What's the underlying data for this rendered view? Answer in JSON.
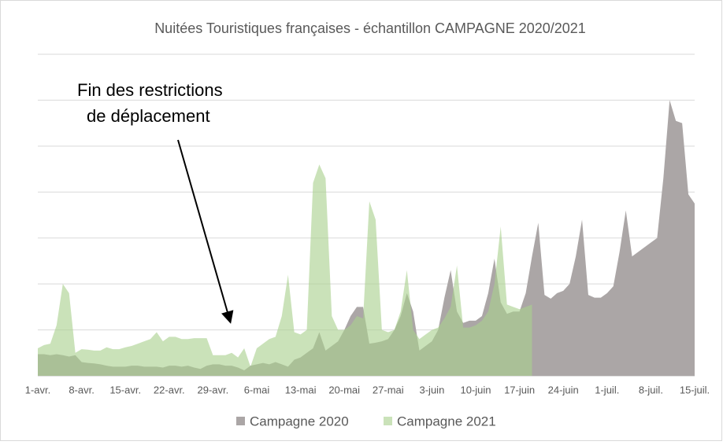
{
  "chart_data": {
    "type": "area",
    "title": "Nuitées Touristiques françaises - échantillon CAMPAGNE 2020/2021",
    "annotation": [
      "Fin des restrictions",
      "de déplacement"
    ],
    "categories": [
      "1-avr.",
      null,
      null,
      null,
      null,
      null,
      null,
      "8-avr.",
      null,
      null,
      null,
      null,
      null,
      null,
      "15-avr.",
      null,
      null,
      null,
      null,
      null,
      null,
      "22-avr.",
      null,
      null,
      null,
      null,
      null,
      null,
      "29-avr.",
      null,
      null,
      null,
      null,
      null,
      null,
      "6-mai",
      null,
      null,
      null,
      null,
      null,
      null,
      "13-mai",
      null,
      null,
      null,
      null,
      null,
      null,
      "20-mai",
      null,
      null,
      null,
      null,
      null,
      null,
      "27-mai",
      null,
      null,
      null,
      null,
      null,
      null,
      "3-juin",
      null,
      null,
      null,
      null,
      null,
      null,
      "10-juin",
      null,
      null,
      null,
      null,
      null,
      null,
      "17-juin",
      null,
      null,
      null,
      null,
      null,
      null,
      "24-juin",
      null,
      null,
      null,
      null,
      null,
      null,
      "1-juil.",
      null,
      null,
      null,
      null,
      null,
      null,
      "8-juil.",
      null,
      null,
      null,
      null,
      null,
      null,
      "15-juil."
    ],
    "series": [
      {
        "name": "Campagne 2020",
        "color": "#aba6a6",
        "values": [
          0.47,
          0.47,
          0.45,
          0.47,
          0.45,
          0.42,
          0.45,
          0.3,
          0.28,
          0.27,
          0.25,
          0.22,
          0.2,
          0.2,
          0.2,
          0.22,
          0.22,
          0.2,
          0.2,
          0.2,
          0.18,
          0.22,
          0.22,
          0.2,
          0.22,
          0.18,
          0.15,
          0.22,
          0.25,
          0.25,
          0.22,
          0.22,
          0.18,
          0.12,
          0.22,
          0.25,
          0.28,
          0.25,
          0.3,
          0.25,
          0.2,
          0.35,
          0.4,
          0.5,
          0.6,
          0.95,
          0.55,
          0.65,
          0.75,
          1.0,
          1.3,
          1.5,
          1.5,
          0.7,
          0.72,
          0.75,
          0.8,
          1.0,
          1.3,
          1.8,
          1.4,
          0.55,
          0.65,
          0.75,
          1.0,
          1.7,
          2.3,
          1.4,
          1.15,
          1.2,
          1.2,
          1.3,
          1.8,
          2.55,
          1.6,
          1.35,
          1.4,
          1.4,
          1.8,
          2.6,
          3.33,
          1.76,
          1.68,
          1.8,
          1.85,
          2.0,
          2.6,
          3.4,
          1.76,
          1.7,
          1.7,
          1.8,
          1.95,
          2.7,
          3.6,
          2.6,
          2.7,
          2.8,
          2.9,
          3.0,
          4.3,
          6.0,
          5.55,
          5.5,
          3.95,
          3.75
        ]
      },
      {
        "name": "Campagne 2021",
        "color": "#a9d18e",
        "values": [
          0.6,
          0.67,
          0.7,
          1.1,
          2.0,
          1.8,
          0.5,
          0.58,
          0.57,
          0.55,
          0.55,
          0.62,
          0.58,
          0.58,
          0.62,
          0.65,
          0.7,
          0.75,
          0.8,
          0.95,
          0.75,
          0.85,
          0.85,
          0.8,
          0.8,
          0.82,
          0.82,
          0.82,
          0.45,
          0.45,
          0.45,
          0.5,
          0.4,
          0.6,
          0.2,
          0.6,
          0.7,
          0.8,
          0.85,
          1.3,
          2.2,
          0.95,
          0.9,
          1.0,
          4.2,
          4.6,
          4.3,
          1.3,
          1.0,
          1.0,
          1.1,
          1.3,
          1.25,
          3.8,
          3.4,
          1.0,
          0.95,
          1.0,
          1.4,
          2.3,
          1.0,
          0.8,
          0.9,
          1.0,
          1.05,
          1.25,
          1.5,
          2.4,
          1.05,
          1.05,
          1.1,
          1.2,
          1.4,
          2.0,
          3.25,
          1.55,
          1.5,
          1.45,
          1.5,
          1.55,
          null,
          null,
          null,
          null,
          null,
          null,
          null,
          null,
          null,
          null,
          null,
          null,
          null,
          null,
          null,
          null,
          null,
          null,
          null,
          null,
          null,
          null,
          null,
          null,
          null,
          null
        ]
      }
    ],
    "ylim": [
      0,
      7
    ],
    "yticks": [
      0,
      1,
      2,
      3,
      4,
      5,
      6,
      7
    ],
    "grid": true,
    "legend": "bottom"
  }
}
